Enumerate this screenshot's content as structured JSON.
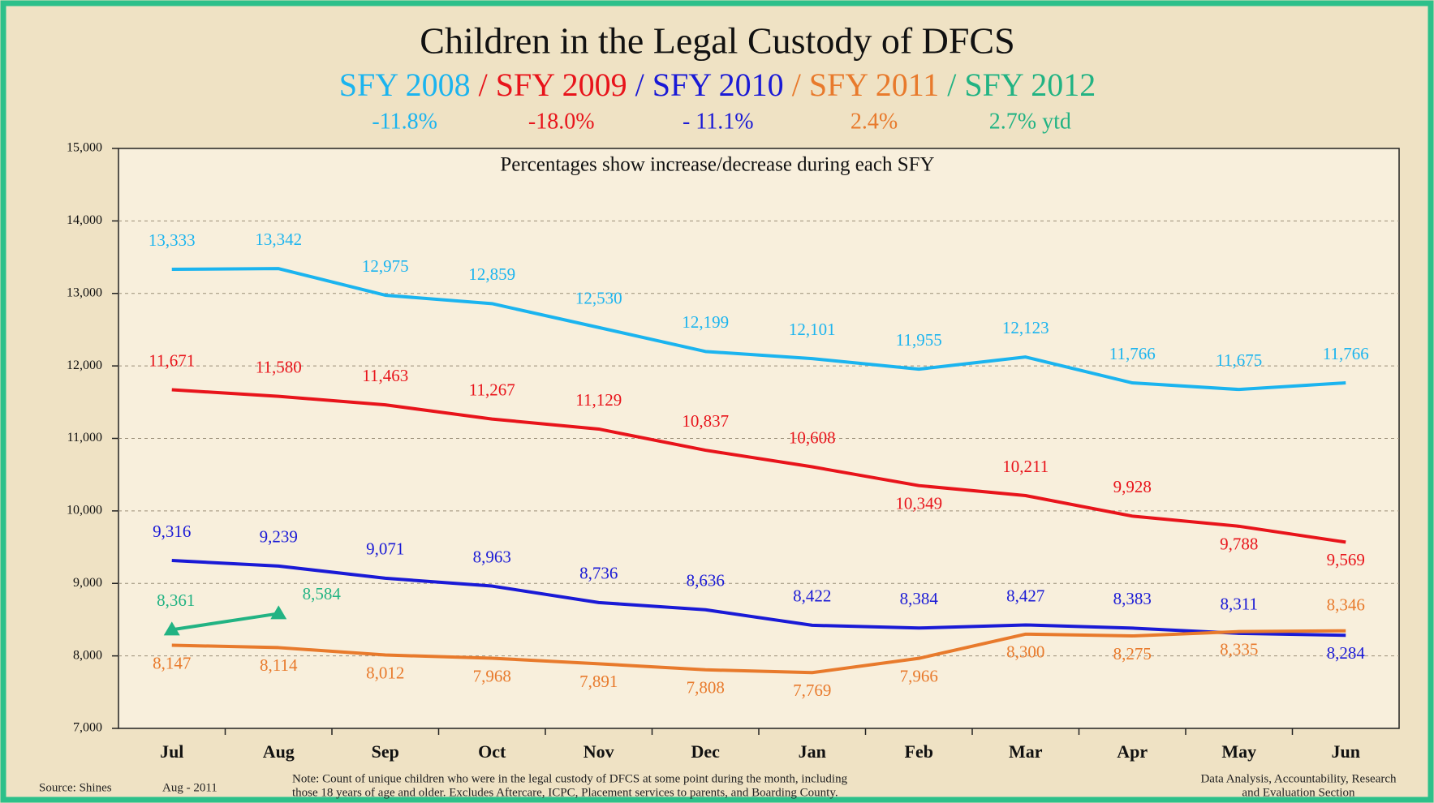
{
  "chart_data": {
    "type": "line",
    "title": "Children in the Legal Custody of DFCS",
    "title_separator": "/",
    "annotation": "Percentages show increase/decrease during each SFY",
    "categories": [
      "Jul",
      "Aug",
      "Sep",
      "Oct",
      "Nov",
      "Dec",
      "Jan",
      "Feb",
      "Mar",
      "Apr",
      "May",
      "Jun"
    ],
    "ylim": [
      7000,
      15000
    ],
    "yticks": [
      {
        "value": 7000,
        "label": "7,000"
      },
      {
        "value": 8000,
        "label": "8,000"
      },
      {
        "value": 9000,
        "label": "9,000"
      },
      {
        "value": 10000,
        "label": "10,000"
      },
      {
        "value": 11000,
        "label": "11,000"
      },
      {
        "value": 12000,
        "label": "12,000"
      },
      {
        "value": 13000,
        "label": "13,000"
      },
      {
        "value": 14000,
        "label": "14,000"
      },
      {
        "value": 15000,
        "label": "15,000"
      }
    ],
    "grid": true,
    "series": [
      {
        "name": "SFY 2008",
        "change": "-11.8%",
        "color": "#1bb4ef",
        "values": [
          13333,
          13342,
          12975,
          12859,
          12530,
          12199,
          12101,
          11955,
          12123,
          11766,
          11675,
          11766
        ],
        "value_labels": [
          "13,333",
          "13,342",
          "12,975",
          "12,859",
          "12,530",
          "12,199",
          "12,101",
          "11,955",
          "12,123",
          "11,766",
          "11,675",
          "11,766"
        ]
      },
      {
        "name": "SFY 2009",
        "change": "-18.0%",
        "color": "#e8141b",
        "values": [
          11671,
          11580,
          11463,
          11267,
          11129,
          10837,
          10608,
          10349,
          10211,
          9928,
          9788,
          9569
        ],
        "value_labels": [
          "11,671",
          "11,580",
          "11,463",
          "11,267",
          "11,129",
          "10,837",
          "10,608",
          "10,349",
          "10,211",
          "9,928",
          "9,788",
          "9,569"
        ]
      },
      {
        "name": "SFY 2010",
        "change": "- 11.1%",
        "color": "#1a1ad6",
        "values": [
          9316,
          9239,
          9071,
          8963,
          8736,
          8636,
          8422,
          8384,
          8427,
          8383,
          8311,
          8284
        ],
        "value_labels": [
          "9,316",
          "9,239",
          "9,071",
          "8,963",
          "8,736",
          "8,636",
          "8,422",
          "8,384",
          "8,427",
          "8,383",
          "8,311",
          "8,284"
        ]
      },
      {
        "name": "SFY 2011",
        "change": "2.4%",
        "color": "#e87a2c",
        "values": [
          8147,
          8114,
          8012,
          7968,
          7891,
          7808,
          7769,
          7966,
          8300,
          8275,
          8335,
          8346
        ],
        "value_labels": [
          "8,147",
          "8,114",
          "8,012",
          "7,968",
          "7,891",
          "7,808",
          "7,769",
          "7,966",
          "8,300",
          "8,275",
          "8,335",
          "8,346"
        ]
      },
      {
        "name": "SFY 2012",
        "change": "2.7% ytd",
        "color": "#22b383",
        "marker": "triangle",
        "values": [
          8361,
          8584,
          null,
          null,
          null,
          null,
          null,
          null,
          null,
          null,
          null,
          null
        ],
        "value_labels": [
          "8,361",
          "8,584",
          null,
          null,
          null,
          null,
          null,
          null,
          null,
          null,
          null,
          null
        ]
      }
    ],
    "source": "Source: Shines",
    "date": "Aug - 2011",
    "note": [
      "Note:  Count of unique children who were in the legal custody of DFCS at some point during the month, including",
      "those 18 years of age and older.  Excludes Aftercare, ICPC, Placement services to parents, and Boarding County."
    ],
    "credit": [
      "Data Analysis, Accountability, Research",
      "and Evaluation Section"
    ]
  }
}
